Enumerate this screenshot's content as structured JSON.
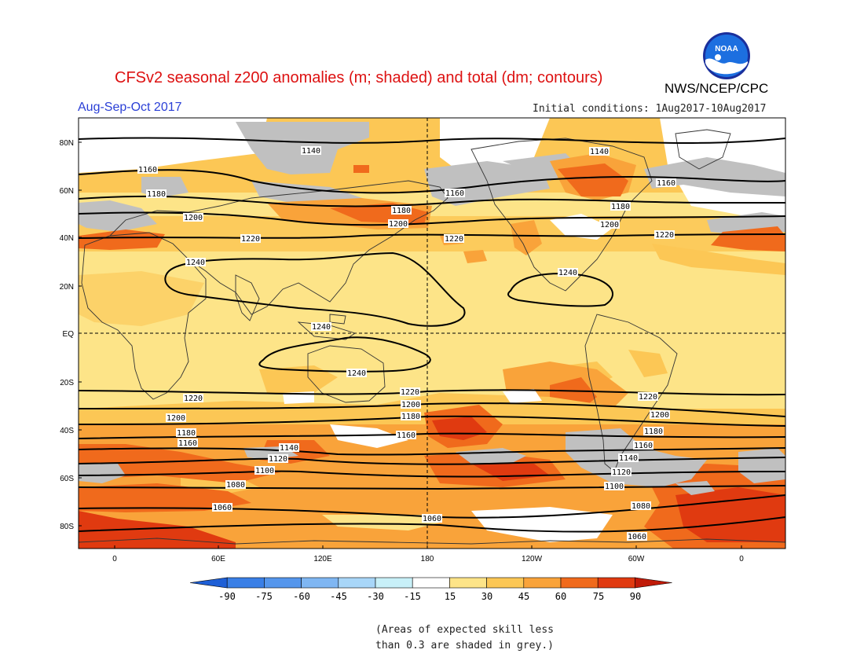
{
  "header": {
    "title": "CFSv2 seasonal z200 anomalies (m; shaded) and total (dm; contours)",
    "agency": "NWS/NCEP/CPC",
    "season": "Aug-Sep-Oct 2017",
    "initial_conditions": "Initial conditions: 1Aug2017-10Aug2017",
    "logo_text": "NOAA"
  },
  "map": {
    "lat_labels": [
      "80N",
      "60N",
      "40N",
      "20N",
      "EQ",
      "20S",
      "40S",
      "60S",
      "80S"
    ],
    "lon_labels": [
      "0",
      "60E",
      "120E",
      "180",
      "120W",
      "60W",
      "0"
    ],
    "contour_labels": {
      "nh": [
        "1140",
        "1160",
        "1180",
        "1200",
        "1220",
        "1240",
        "1160",
        "1180",
        "1200",
        "1220",
        "1160",
        "1180",
        "1200",
        "1220",
        "1140",
        "1240"
      ],
      "sh": [
        "1240",
        "1240",
        "1220",
        "1200",
        "1180",
        "1160",
        "1220",
        "1200",
        "1180",
        "1160",
        "1140",
        "1120",
        "1100",
        "1080",
        "1060",
        "1220",
        "1200",
        "1180",
        "1160",
        "1140",
        "1120",
        "1100",
        "1080",
        "1060",
        "1060"
      ]
    }
  },
  "colorbar": {
    "tick_labels": [
      "-90",
      "-75",
      "-60",
      "-45",
      "-30",
      "-15",
      "15",
      "30",
      "45",
      "60",
      "75",
      "90"
    ],
    "colors": [
      "#1e5fd6",
      "#3a7fe6",
      "#5596ec",
      "#7fb6f2",
      "#a8d6f8",
      "#c8f0f8",
      "#ffffff",
      "#fde488",
      "#fcc755",
      "#f9a33a",
      "#f06a1c",
      "#e03a10",
      "#c01a08"
    ],
    "colors_note": "shading palette"
  },
  "footnote": {
    "line1": "(Areas of expected skill less",
    "line2": "than 0.3 are shaded in grey.)"
  },
  "palette": {
    "grey": "#c0c0c0",
    "white": "#ffffff",
    "light_yellow": "#fde488",
    "yellow": "#fcc755",
    "orange": "#f9a33a",
    "dark_orange": "#f06a1c",
    "red": "#e03a10",
    "title_red": "#dd1111",
    "season_blue": "#2a3fd6"
  }
}
